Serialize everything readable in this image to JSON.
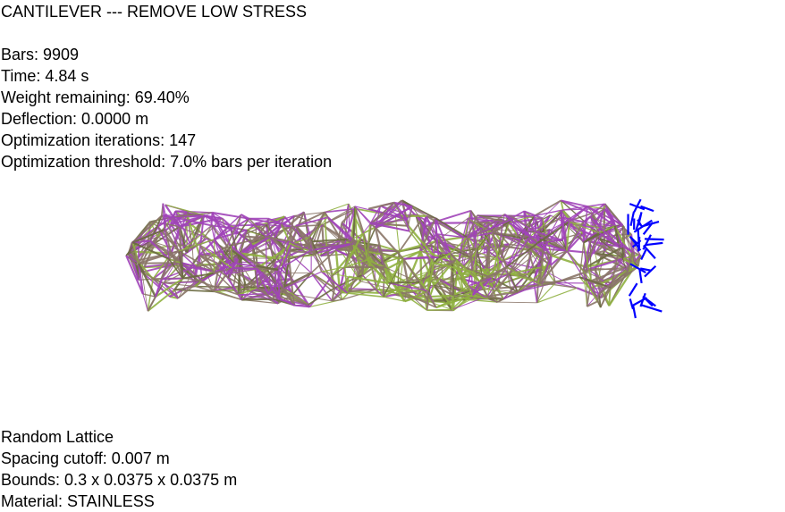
{
  "header": {
    "title": "CANTILEVER --- REMOVE LOW STRESS"
  },
  "stats": {
    "bars": "Bars: 9909",
    "time": "Time: 4.84 s",
    "weight_remaining": "Weight remaining: 69.40%",
    "deflection": "Deflection: 0.0000 m",
    "optimization_iterations": "Optimization iterations: 147",
    "optimization_threshold": "Optimization threshold: 7.0% bars per iteration"
  },
  "lattice_info": {
    "type": "Random Lattice",
    "spacing_cutoff": "Spacing cutoff: 0.007 m",
    "bounds": "Bounds: 0.3 x 0.0375 x 0.0375 m",
    "material": "Material: STAINLESS"
  },
  "colors": {
    "background": "#ffffff",
    "bar_tan": "#8a7568",
    "bar_purple": "#a044b8",
    "bar_green": "#8fb040",
    "bar_olive": "#6a6a40",
    "fixed_support": "#0000ff"
  },
  "icons": {
    "fixed_support": "blue-support-arrows-icon"
  }
}
